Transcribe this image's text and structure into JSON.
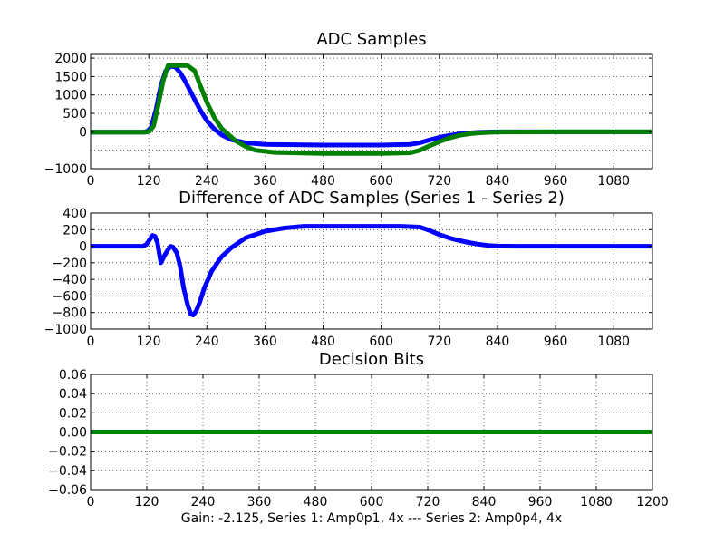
{
  "caption": "Gain: -2.125, Series 1: Amp0p1, 4x --- Series 2: Amp0p4, 4x",
  "colors": {
    "blue": "#0000ff",
    "green": "#008000"
  },
  "chart_data": [
    {
      "type": "line",
      "title": "ADC Samples",
      "xlabel": "",
      "ylabel": "",
      "xlim": [
        0,
        1160
      ],
      "ylim": [
        -1000,
        2100
      ],
      "grid": true,
      "xticks": [
        "0",
        "120",
        "240",
        "360",
        "480",
        "600",
        "720",
        "840",
        "960",
        "1080"
      ],
      "yticks": [
        "2000",
        "1500",
        "1000",
        "500",
        "0",
        "−1000"
      ],
      "series": [
        {
          "color": "#0000ff",
          "x": [
            0,
            110,
            118,
            125,
            135,
            145,
            155,
            165,
            175,
            185,
            195,
            210,
            225,
            240,
            255,
            270,
            290,
            320,
            360,
            480,
            600,
            660,
            680,
            700,
            720,
            740,
            760,
            780,
            800,
            820,
            840,
            960,
            1080,
            1160
          ],
          "y": [
            -10,
            -10,
            20,
            120,
            600,
            1250,
            1650,
            1780,
            1760,
            1600,
            1380,
            1000,
            620,
            300,
            80,
            -80,
            -210,
            -300,
            -340,
            -360,
            -360,
            -340,
            -300,
            -220,
            -150,
            -100,
            -60,
            -30,
            -15,
            -5,
            0,
            0,
            0,
            0
          ]
        },
        {
          "color": "#008000",
          "x": [
            0,
            115,
            122,
            130,
            140,
            150,
            160,
            175,
            200,
            215,
            225,
            240,
            255,
            270,
            285,
            300,
            320,
            340,
            380,
            480,
            600,
            660,
            680,
            700,
            720,
            740,
            760,
            780,
            800,
            820,
            840,
            960,
            1080,
            1160
          ],
          "y": [
            -10,
            -10,
            20,
            160,
            750,
            1400,
            1800,
            1800,
            1800,
            1650,
            1300,
            800,
            400,
            100,
            -80,
            -250,
            -400,
            -500,
            -560,
            -590,
            -590,
            -570,
            -500,
            -380,
            -270,
            -170,
            -100,
            -55,
            -30,
            -15,
            -5,
            0,
            0,
            0
          ]
        }
      ]
    },
    {
      "type": "line",
      "title": "Difference of ADC Samples (Series 1 - Series 2)",
      "xlabel": "",
      "ylabel": "",
      "xlim": [
        0,
        1160
      ],
      "ylim": [
        -1000,
        400
      ],
      "grid": true,
      "xticks": [
        "0",
        "120",
        "240",
        "360",
        "480",
        "600",
        "720",
        "840",
        "960",
        "1080"
      ],
      "yticks": [
        "400",
        "200",
        "0",
        "−200",
        "−400",
        "−600",
        "−800",
        "−1000"
      ],
      "series": [
        {
          "color": "#0000ff",
          "x": [
            0,
            108,
            115,
            122,
            128,
            133,
            138,
            145,
            152,
            160,
            165,
            170,
            178,
            185,
            192,
            200,
            207,
            212,
            218,
            225,
            235,
            250,
            270,
            290,
            320,
            360,
            400,
            440,
            480,
            560,
            640,
            680,
            700,
            720,
            740,
            760,
            780,
            800,
            820,
            840,
            880,
            960,
            1080,
            1160
          ],
          "y": [
            0,
            0,
            20,
            80,
            130,
            120,
            40,
            -200,
            -120,
            -40,
            0,
            -10,
            -80,
            -250,
            -500,
            -700,
            -820,
            -830,
            -780,
            -680,
            -500,
            -300,
            -130,
            -20,
            100,
            180,
            220,
            240,
            240,
            240,
            240,
            230,
            190,
            140,
            100,
            70,
            45,
            25,
            10,
            2,
            0,
            0,
            0,
            0
          ]
        }
      ]
    },
    {
      "type": "line",
      "title": "Decision Bits",
      "xlabel": "",
      "ylabel": "",
      "xlim": [
        0,
        1200
      ],
      "ylim": [
        -0.06,
        0.06
      ],
      "grid": true,
      "xticks": [
        "0",
        "120",
        "240",
        "360",
        "480",
        "600",
        "720",
        "840",
        "960",
        "1080",
        "1200"
      ],
      "yticks": [
        "0.06",
        "0.04",
        "0.02",
        "0.00",
        "−0.02",
        "−0.04",
        "−0.06"
      ],
      "series": [
        {
          "color": "#008000",
          "x": [
            0,
            1200
          ],
          "y": [
            0,
            0
          ]
        }
      ]
    }
  ]
}
